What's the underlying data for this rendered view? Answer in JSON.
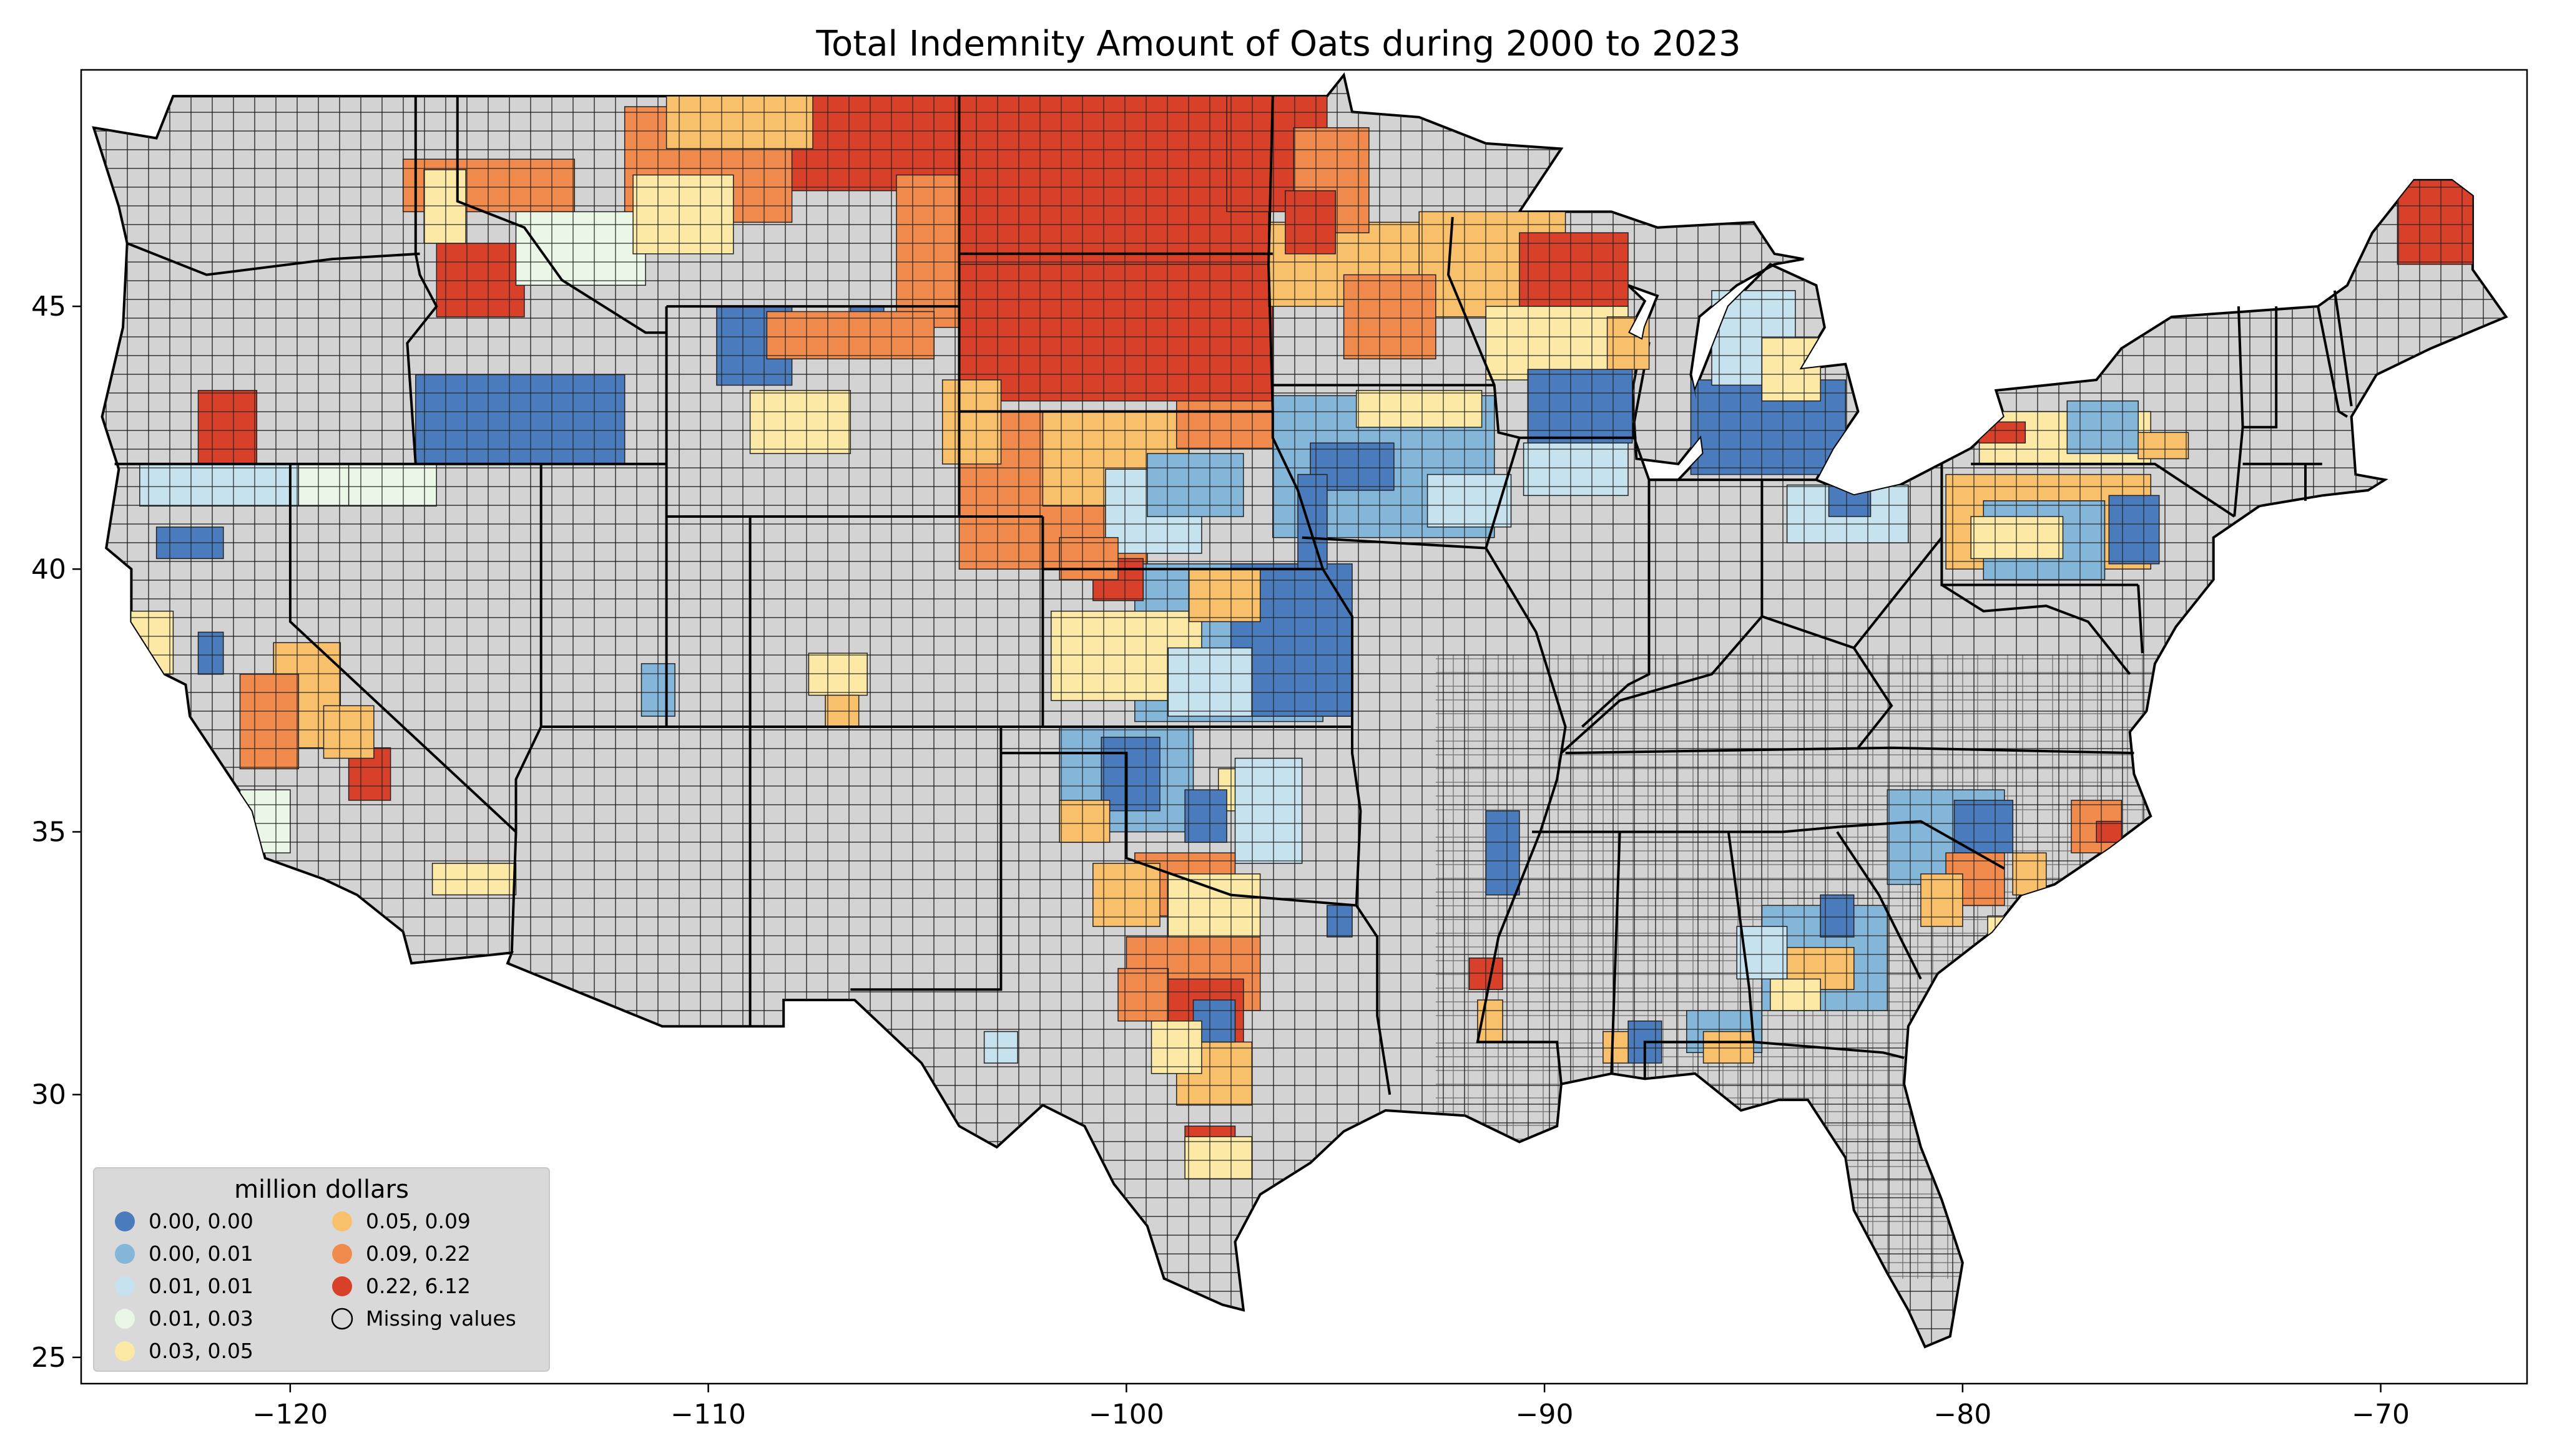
{
  "title": "Total Indemnity Amount of Oats during 2000 to 2023",
  "colors": {
    "missing": "#d3d3d3",
    "border": "#000000",
    "c1": "#4a7bbd",
    "c2": "#84b6d9",
    "c3": "#c6e2ee",
    "c4": "#eaf6e6",
    "c5": "#fde9a6",
    "c6": "#f9c06b",
    "c7": "#f08a4d",
    "c8": "#d9402a"
  },
  "axes": {
    "x_ticks": [
      {
        "value": -120,
        "label": "−120"
      },
      {
        "value": -110,
        "label": "−110"
      },
      {
        "value": -100,
        "label": "−100"
      },
      {
        "value": -90,
        "label": "−90"
      },
      {
        "value": -80,
        "label": "−80"
      },
      {
        "value": -70,
        "label": "−70"
      }
    ],
    "y_ticks": [
      {
        "value": 45,
        "label": "45"
      },
      {
        "value": 40,
        "label": "40"
      },
      {
        "value": 35,
        "label": "35"
      },
      {
        "value": 30,
        "label": "30"
      },
      {
        "value": 25,
        "label": "25"
      }
    ],
    "x_range": [
      -125,
      -66.5
    ],
    "y_range": [
      24.5,
      49.5
    ]
  },
  "legend": {
    "title": "million dollars",
    "items": [
      {
        "label": "0.00, 0.00",
        "color": "#4a7bbd"
      },
      {
        "label": "0.00, 0.01",
        "color": "#84b6d9"
      },
      {
        "label": "0.01, 0.01",
        "color": "#c6e2ee"
      },
      {
        "label": "0.01, 0.03",
        "color": "#eaf6e6"
      },
      {
        "label": "0.03, 0.05",
        "color": "#fde9a6"
      },
      {
        "label": "0.05, 0.09",
        "color": "#f9c06b"
      },
      {
        "label": "0.09, 0.22",
        "color": "#f08a4d"
      },
      {
        "label": "0.22, 6.12",
        "color": "#d9402a"
      },
      {
        "label": "Missing values",
        "color": "none"
      }
    ]
  }
}
